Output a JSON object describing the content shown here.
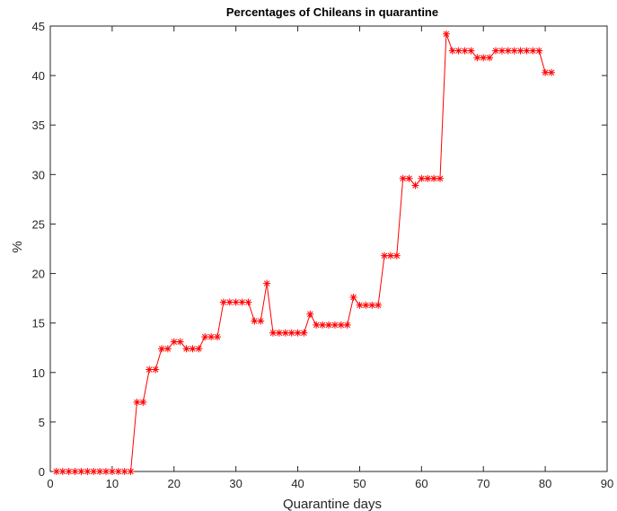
{
  "chart_data": {
    "type": "line",
    "title": "Percentages of Chileans in quarantine",
    "xlabel": "Quarantine days",
    "ylabel": "%",
    "xlim": [
      0,
      90
    ],
    "ylim": [
      0,
      45
    ],
    "x_ticks": [
      0,
      10,
      20,
      30,
      40,
      50,
      60,
      70,
      80,
      90
    ],
    "x_tick_labels": [
      "0",
      "10",
      "20",
      "30",
      "40",
      "50",
      "60",
      "70",
      "80",
      "90"
    ],
    "y_ticks": [
      0,
      5,
      10,
      15,
      20,
      25,
      30,
      35,
      40,
      45
    ],
    "y_tick_labels": [
      "0",
      "5",
      "10",
      "15",
      "20",
      "25",
      "30",
      "35",
      "40",
      "45"
    ],
    "grid": false,
    "marker": "asterisk",
    "series": [
      {
        "color": "#ff0000",
        "x": [
          1,
          2,
          3,
          4,
          5,
          6,
          7,
          8,
          9,
          10,
          11,
          12,
          13,
          14,
          15,
          16,
          17,
          18,
          19,
          20,
          21,
          22,
          23,
          24,
          25,
          26,
          27,
          28,
          29,
          30,
          31,
          32,
          33,
          34,
          35,
          36,
          37,
          38,
          39,
          40,
          41,
          42,
          43,
          44,
          45,
          46,
          47,
          48,
          49,
          50,
          51,
          52,
          53,
          54,
          55,
          56,
          57,
          58,
          59,
          60,
          61,
          62,
          63,
          64,
          65,
          66,
          67,
          68,
          69,
          70,
          71,
          72,
          73,
          74,
          75,
          76,
          77,
          78,
          79,
          80,
          81
        ],
        "values": [
          0,
          0,
          0,
          0,
          0,
          0,
          0,
          0,
          0,
          0,
          0,
          0,
          0,
          7,
          7,
          10.3,
          10.3,
          12.4,
          12.4,
          13.1,
          13.1,
          12.4,
          12.4,
          12.4,
          13.6,
          13.6,
          13.6,
          17.1,
          17.1,
          17.1,
          17.1,
          17.1,
          15.2,
          15.2,
          19,
          14,
          14,
          14,
          14,
          14,
          14,
          15.9,
          14.8,
          14.8,
          14.8,
          14.8,
          14.8,
          14.8,
          17.6,
          16.8,
          16.8,
          16.8,
          16.8,
          21.8,
          21.8,
          21.8,
          29.6,
          29.6,
          28.9,
          29.6,
          29.6,
          29.6,
          29.6,
          44.2,
          42.5,
          42.5,
          42.5,
          42.5,
          41.8,
          41.8,
          41.8,
          42.5,
          42.5,
          42.5,
          42.5,
          42.5,
          42.5,
          42.5,
          42.5,
          40.3,
          40.3
        ]
      }
    ]
  }
}
